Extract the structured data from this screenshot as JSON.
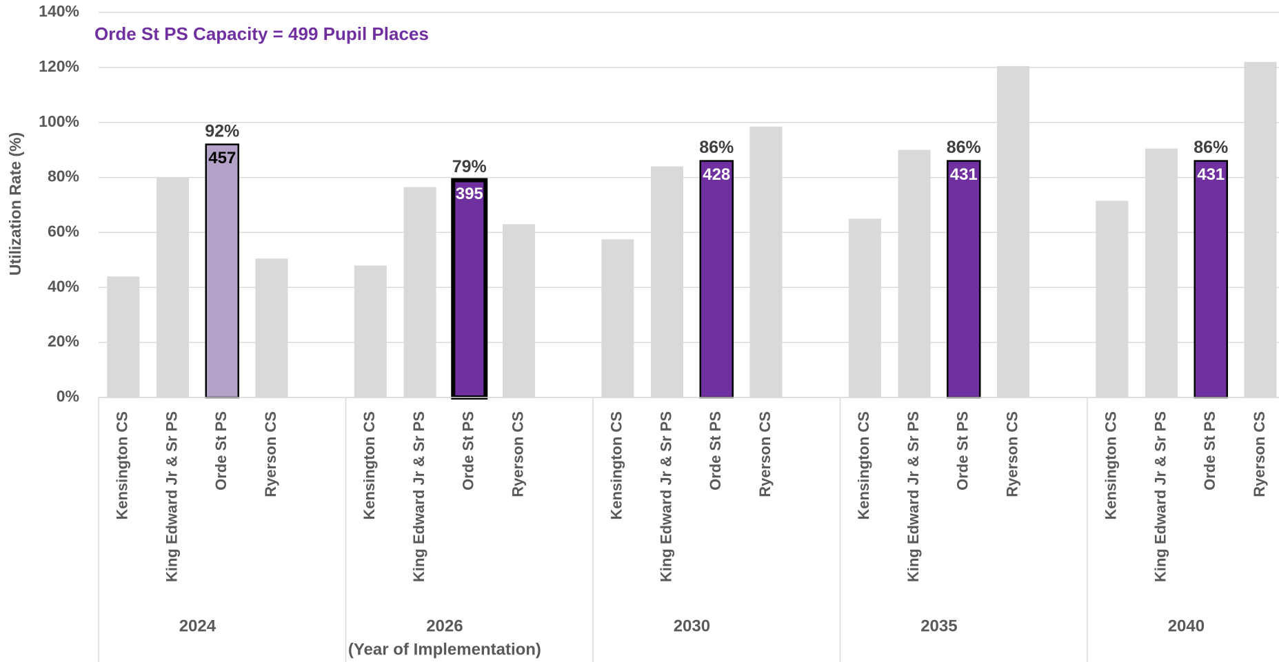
{
  "chart_data": {
    "type": "grouped-bar",
    "annotation": "Orde St PS Capacity = 499 Pupil Places",
    "annotation_color": "#7030a0",
    "ylabel": "Utilization Rate (%)",
    "groups": [
      "2024",
      "2026",
      "2030",
      "2035",
      "2040"
    ],
    "group_notes": [
      null,
      "(Year of Implementation)",
      null,
      null,
      null
    ],
    "ylim": [
      0,
      140
    ],
    "yticks": [
      {
        "value": 0,
        "label": "0%"
      },
      {
        "value": 20,
        "label": "20%"
      },
      {
        "value": 40,
        "label": "40%"
      },
      {
        "value": 60,
        "label": "60%"
      },
      {
        "value": 80,
        "label": "80%"
      },
      {
        "value": 100,
        "label": "100%"
      },
      {
        "value": 120,
        "label": "120%"
      },
      {
        "value": 140,
        "label": "140%"
      }
    ],
    "grid": true,
    "series": [
      {
        "name": "Kensington CS",
        "color": "#d9d9d9",
        "values": [
          44,
          48,
          57.5,
          65,
          71.5
        ]
      },
      {
        "name": "King Edward Jr & Sr PS",
        "color": "#d9d9d9",
        "values": [
          80,
          76.5,
          84,
          90,
          90.5
        ]
      },
      {
        "name": "Orde St PS",
        "colors": [
          "#b4a2c8",
          "#7030a0",
          "#7030a0",
          "#7030a0",
          "#7030a0"
        ],
        "values": [
          92,
          79,
          86,
          86,
          86
        ],
        "value_labels": [
          "92%",
          "79%",
          "86%",
          "86%",
          "86%"
        ],
        "enrollment": [
          457,
          395,
          428,
          431,
          431
        ]
      },
      {
        "name": "Ryerson CS",
        "color": "#d9d9d9",
        "values": [
          50.5,
          63,
          98.5,
          120.5,
          122
        ]
      }
    ]
  }
}
